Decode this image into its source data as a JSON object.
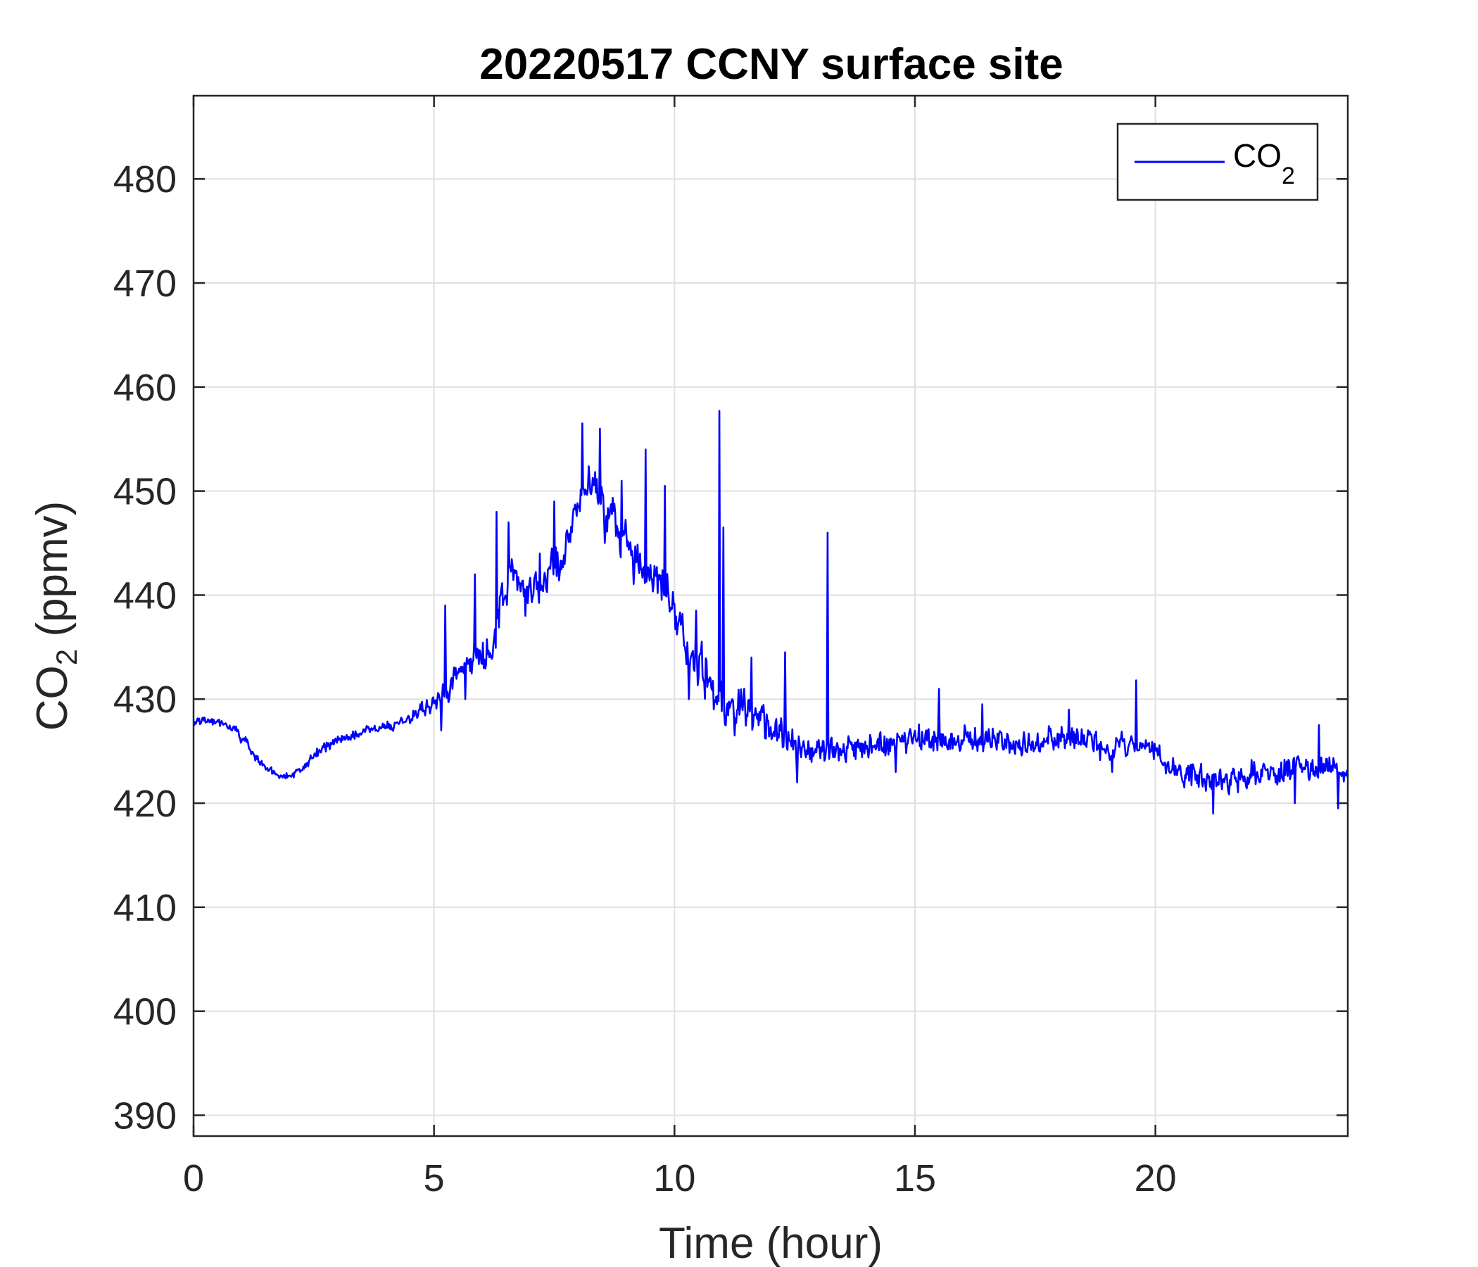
{
  "chart_data": {
    "type": "line",
    "title": "20220517 CCNY surface site",
    "xlabel": "Time (hour)",
    "ylabel": {
      "main": "CO",
      "sub": "2",
      "unit": " (ppmv)"
    },
    "xlim": [
      0,
      24
    ],
    "ylim": [
      388,
      488
    ],
    "xticks": [
      0,
      5,
      10,
      15,
      20
    ],
    "yticks": [
      390,
      400,
      410,
      420,
      430,
      440,
      450,
      460,
      470,
      480
    ],
    "grid": true,
    "legend_position": "top-right",
    "series": [
      {
        "name": {
          "main": "CO",
          "sub": "2"
        },
        "color": "#0000ff",
        "anchors_x": [
          0,
          0.3,
          0.6,
          0.9,
          1.2,
          1.5,
          1.8,
          2.2,
          2.6,
          3.0,
          3.5,
          4.0,
          4.5,
          5.0,
          5.3,
          5.6,
          5.9,
          6.2,
          6.4,
          6.6,
          6.8,
          7.0,
          7.3,
          7.6,
          7.9,
          8.1,
          8.3,
          8.6,
          8.9,
          9.2,
          9.5,
          9.8,
          10.1,
          10.4,
          10.7,
          11.0,
          11.3,
          11.6,
          11.9,
          12.2,
          12.5,
          12.8,
          13.1,
          13.4,
          14.0,
          14.5,
          15.0,
          15.5,
          16.0,
          16.5,
          17.0,
          17.5,
          18.0,
          18.5,
          19.0,
          19.5,
          19.8,
          20.0,
          20.3,
          20.6,
          21.0,
          21.5,
          22.0,
          22.5,
          23.0,
          23.5,
          24.0
        ],
        "anchors_y": [
          427.5,
          428,
          427.5,
          427,
          425,
          423.5,
          422.5,
          423,
          425,
          426,
          426.8,
          427.3,
          428,
          429.5,
          431,
          433,
          434,
          434.5,
          439,
          442,
          441,
          440.5,
          441.5,
          443,
          447,
          451,
          450.5,
          448,
          446,
          443.5,
          442,
          440,
          437,
          434,
          432,
          430,
          429.5,
          429,
          428,
          426.5,
          425.5,
          425,
          425.5,
          425.2,
          425.3,
          425.8,
          426,
          426.3,
          426.2,
          425.8,
          425.6,
          425.8,
          426.5,
          426,
          425.5,
          425.5,
          425.2,
          424.8,
          423.5,
          422.8,
          422.5,
          422.3,
          422.6,
          423,
          423.4,
          423.3,
          423
        ],
        "noise": [
          [
            0,
            0.4
          ],
          [
            4.4,
            0.4
          ],
          [
            5.0,
            0.9
          ],
          [
            6.2,
            1.6
          ],
          [
            7.0,
            1.3
          ],
          [
            8.0,
            1.5
          ],
          [
            9.5,
            1.8
          ],
          [
            11.0,
            2.0
          ],
          [
            12.0,
            1.5
          ],
          [
            13.0,
            1.2
          ],
          [
            16.0,
            1.1
          ],
          [
            20.0,
            1.1
          ],
          [
            24.0,
            1.1
          ]
        ],
        "spikes": [
          {
            "x": 5.23,
            "y": 439
          },
          {
            "x": 5.45,
            "y": 433
          },
          {
            "x": 5.85,
            "y": 442
          },
          {
            "x": 6.3,
            "y": 448
          },
          {
            "x": 6.55,
            "y": 447
          },
          {
            "x": 7.2,
            "y": 444
          },
          {
            "x": 7.5,
            "y": 449
          },
          {
            "x": 8.08,
            "y": 456.5
          },
          {
            "x": 8.45,
            "y": 456
          },
          {
            "x": 8.9,
            "y": 451
          },
          {
            "x": 9.4,
            "y": 454
          },
          {
            "x": 9.8,
            "y": 450.5
          },
          {
            "x": 10.45,
            "y": 438.5
          },
          {
            "x": 10.93,
            "y": 457.7
          },
          {
            "x": 11.02,
            "y": 446.5
          },
          {
            "x": 11.6,
            "y": 434
          },
          {
            "x": 12.3,
            "y": 434.5
          },
          {
            "x": 13.18,
            "y": 446
          },
          {
            "x": 15.5,
            "y": 431
          },
          {
            "x": 16.4,
            "y": 429.5
          },
          {
            "x": 18.2,
            "y": 429
          },
          {
            "x": 19.6,
            "y": 431.8
          },
          {
            "x": 23.4,
            "y": 427.5
          }
        ],
        "dips": [
          {
            "x": 5.15,
            "y": 427
          },
          {
            "x": 5.65,
            "y": 430
          },
          {
            "x": 6.9,
            "y": 438
          },
          {
            "x": 8.55,
            "y": 445
          },
          {
            "x": 10.3,
            "y": 430
          },
          {
            "x": 11.25,
            "y": 426.5
          },
          {
            "x": 12.55,
            "y": 422
          },
          {
            "x": 14.6,
            "y": 423
          },
          {
            "x": 19.1,
            "y": 423
          },
          {
            "x": 21.2,
            "y": 419
          },
          {
            "x": 22.9,
            "y": 420
          },
          {
            "x": 23.8,
            "y": 419.5
          }
        ]
      }
    ]
  }
}
